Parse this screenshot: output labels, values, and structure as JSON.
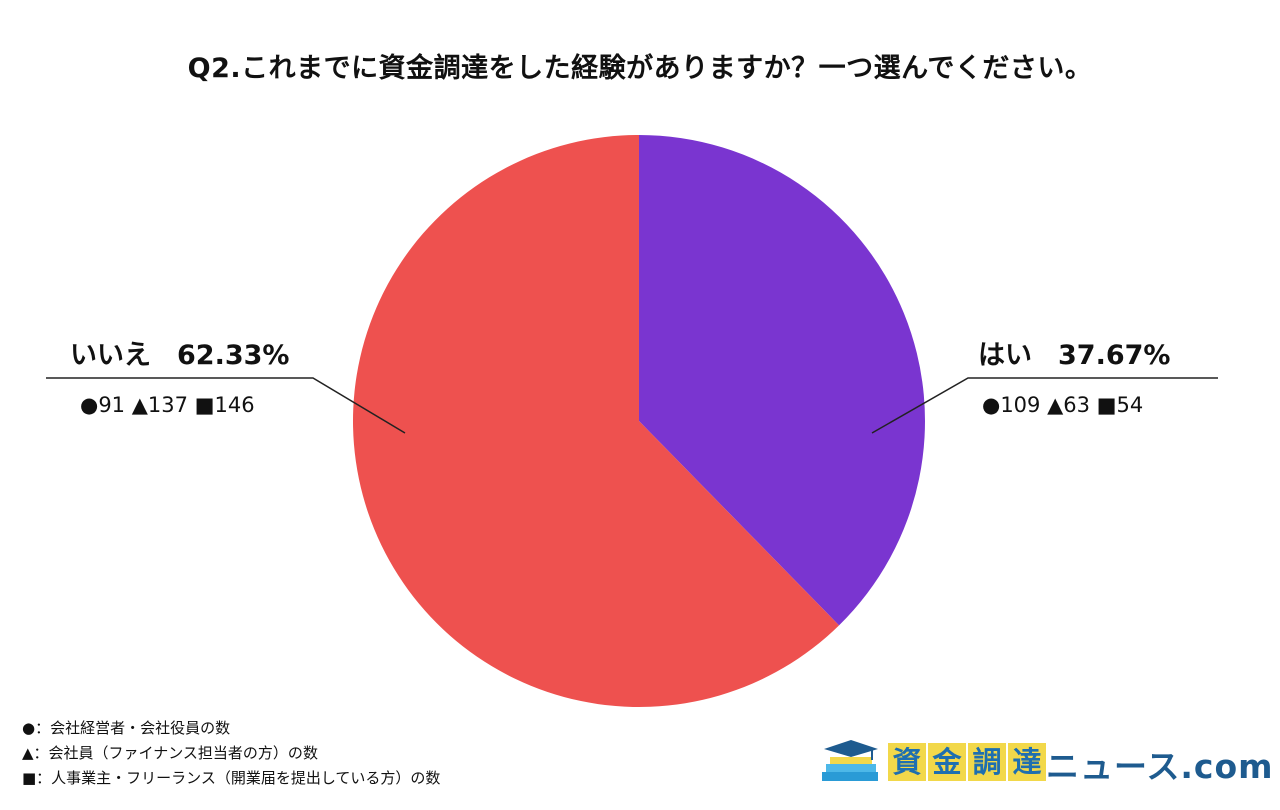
{
  "chart_data": {
    "type": "pie",
    "title": "Q2.これまでに資金調達をした経験がありますか？一つ選んでください。",
    "slices": [
      {
        "label": "はい",
        "percent_label": "37.67%",
        "value": 37.67,
        "color": "#7a35d0",
        "counts": "●109 ▲63 ■54"
      },
      {
        "label": "いいえ",
        "percent_label": "62.33%",
        "value": 62.33,
        "color": "#ee514f",
        "counts": "●91 ▲137 ■146"
      }
    ],
    "legend": [
      "●：会社経営者・会社役員の数",
      "▲：会社員（ファイナンス担当者の方）の数",
      "■：人事業主・フリーランス（開業届を提出している方）の数"
    ]
  },
  "logo": {
    "chars": [
      "資",
      "金",
      "調",
      "達"
    ],
    "suffix": "ニュース.com",
    "accent": "#f2d84a",
    "brand": "#1e5b8f"
  }
}
